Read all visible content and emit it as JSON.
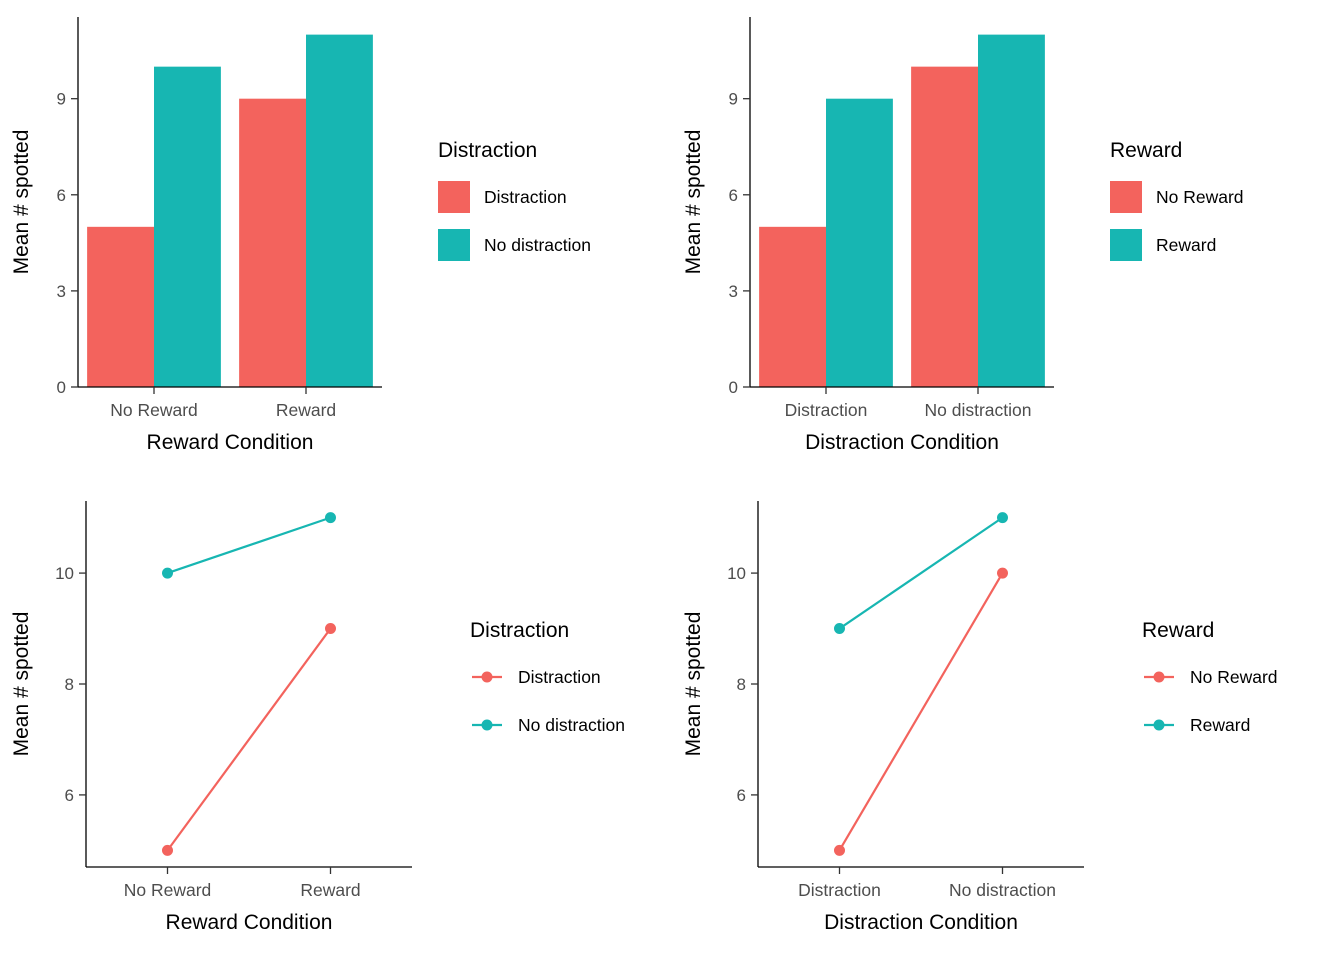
{
  "colors": {
    "red": "#F3635D",
    "teal": "#17B6B2",
    "axis": "#000000",
    "tick": "#333333",
    "tick_label": "#4D4D4D"
  },
  "chart_data": [
    {
      "type": "bar",
      "title": "",
      "xlabel": "Reward Condition",
      "ylabel": "Mean # spotted",
      "categories": [
        "No Reward",
        "Reward"
      ],
      "series": [
        {
          "name": "Distraction",
          "color": "red",
          "values": [
            5,
            9
          ]
        },
        {
          "name": "No distraction",
          "color": "teal",
          "values": [
            10,
            11
          ]
        }
      ],
      "legend_title": "Distraction",
      "yticks": [
        0,
        3,
        6,
        9
      ],
      "ylim": [
        0,
        11.55
      ],
      "grid": false,
      "legend_position": "right"
    },
    {
      "type": "bar",
      "title": "",
      "xlabel": "Distraction Condition",
      "ylabel": "Mean # spotted",
      "categories": [
        "Distraction",
        "No distraction"
      ],
      "series": [
        {
          "name": "No Reward",
          "color": "red",
          "values": [
            5,
            10
          ]
        },
        {
          "name": "Reward",
          "color": "teal",
          "values": [
            9,
            11
          ]
        }
      ],
      "legend_title": "Reward",
      "yticks": [
        0,
        3,
        6,
        9
      ],
      "ylim": [
        0,
        11.55
      ],
      "grid": false,
      "legend_position": "right"
    },
    {
      "type": "line",
      "title": "",
      "xlabel": "Reward Condition",
      "ylabel": "Mean # spotted",
      "categories": [
        "No Reward",
        "Reward"
      ],
      "series": [
        {
          "name": "Distraction",
          "color": "red",
          "values": [
            5,
            9
          ]
        },
        {
          "name": "No distraction",
          "color": "teal",
          "values": [
            10,
            11
          ]
        }
      ],
      "legend_title": "Distraction",
      "yticks": [
        6,
        8,
        10
      ],
      "ylim": [
        4.7,
        11.3
      ],
      "grid": false,
      "legend_position": "right"
    },
    {
      "type": "line",
      "title": "",
      "xlabel": "Distraction Condition",
      "ylabel": "Mean # spotted",
      "categories": [
        "Distraction",
        "No distraction"
      ],
      "series": [
        {
          "name": "No Reward",
          "color": "red",
          "values": [
            5,
            10
          ]
        },
        {
          "name": "Reward",
          "color": "teal",
          "values": [
            9,
            11
          ]
        }
      ],
      "legend_title": "Reward",
      "yticks": [
        6,
        8,
        10
      ],
      "ylim": [
        4.7,
        11.3
      ],
      "grid": false,
      "legend_position": "right"
    }
  ]
}
